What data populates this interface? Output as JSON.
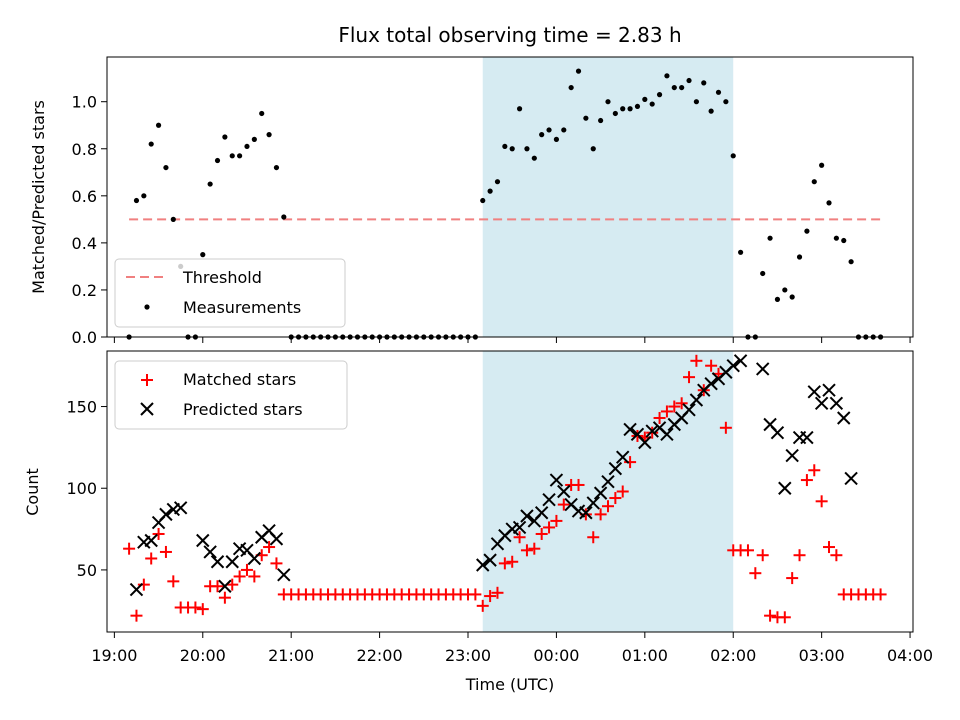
{
  "chart_data": [
    {
      "type": "scatter",
      "title": "Flux total observing time = 2.83 h",
      "xlabel": "",
      "ylabel": "Matched/Predicted stars",
      "ylim": [
        0,
        1.19
      ],
      "yticks": [
        0.0,
        0.2,
        0.4,
        0.6,
        0.8,
        1.0
      ],
      "ytick_labels": [
        "0.0",
        "0.2",
        "0.4",
        "0.6",
        "0.8",
        "1.0"
      ],
      "shaded_interval": [
        "23:10",
        "02:00"
      ],
      "threshold": {
        "name": "Threshold",
        "value": 0.5,
        "x_start": "19:10",
        "x_end": "03:40",
        "color": "#f08080"
      },
      "legend": {
        "position": "lower left",
        "entries": [
          "Threshold",
          "Measurements"
        ]
      },
      "series": [
        {
          "name": "Measurements",
          "color": "#000000",
          "marker": "dot",
          "x": [
            "19:10",
            "19:15",
            "19:20",
            "19:25",
            "19:30",
            "19:35",
            "19:40",
            "19:45",
            "19:50",
            "19:55",
            "20:00",
            "20:05",
            "20:10",
            "20:15",
            "20:20",
            "20:25",
            "20:30",
            "20:35",
            "20:40",
            "20:45",
            "20:50",
            "20:55",
            "21:00",
            "21:05",
            "21:10",
            "21:15",
            "21:20",
            "21:25",
            "21:30",
            "21:35",
            "21:40",
            "21:45",
            "21:50",
            "21:55",
            "22:00",
            "22:05",
            "22:10",
            "22:15",
            "22:20",
            "22:25",
            "22:30",
            "22:35",
            "22:40",
            "22:45",
            "22:50",
            "22:55",
            "23:00",
            "23:05",
            "23:10",
            "23:15",
            "23:20",
            "23:25",
            "23:30",
            "23:35",
            "23:40",
            "23:45",
            "23:50",
            "23:55",
            "00:00",
            "00:05",
            "00:10",
            "00:15",
            "00:20",
            "00:25",
            "00:30",
            "00:35",
            "00:40",
            "00:45",
            "00:50",
            "00:55",
            "01:00",
            "01:05",
            "01:10",
            "01:15",
            "01:20",
            "01:25",
            "01:30",
            "01:35",
            "01:40",
            "01:45",
            "01:50",
            "01:55",
            "02:00",
            "02:05",
            "02:10",
            "02:15",
            "02:20",
            "02:25",
            "02:30",
            "02:35",
            "02:40",
            "02:45",
            "02:50",
            "02:55",
            "03:00",
            "03:05",
            "03:10",
            "03:15",
            "03:20",
            "03:25",
            "03:30",
            "03:35",
            "03:40"
          ],
          "y": [
            0.0,
            0.58,
            0.6,
            0.82,
            0.9,
            0.72,
            0.5,
            0.3,
            0.0,
            0.0,
            0.35,
            0.65,
            0.75,
            0.85,
            0.77,
            0.77,
            0.81,
            0.84,
            0.95,
            0.86,
            0.72,
            0.51,
            0.0,
            0.0,
            0.0,
            0.0,
            0.0,
            0.0,
            0.0,
            0.0,
            0.0,
            0.0,
            0.0,
            0.0,
            0.0,
            0.0,
            0.0,
            0.0,
            0.0,
            0.0,
            0.0,
            0.0,
            0.0,
            0.0,
            0.0,
            0.0,
            0.0,
            0.0,
            0.58,
            0.62,
            0.66,
            0.81,
            0.8,
            0.97,
            0.8,
            0.76,
            0.86,
            0.88,
            0.84,
            0.88,
            1.06,
            1.13,
            0.93,
            0.8,
            0.92,
            1.0,
            0.95,
            0.97,
            0.97,
            0.98,
            1.01,
            0.99,
            1.03,
            1.11,
            1.06,
            1.06,
            1.09,
            1.0,
            1.08,
            0.96,
            1.04,
            1.0,
            0.77,
            0.36,
            0.0,
            0.0,
            0.27,
            0.42,
            0.16,
            0.2,
            0.17,
            0.34,
            0.45,
            0.66,
            0.73,
            0.57,
            0.42,
            0.41,
            0.32,
            0.0,
            0.0,
            0.0,
            0.0
          ]
        }
      ]
    },
    {
      "type": "scatter",
      "title": "",
      "xlabel": "Time (UTC)",
      "ylabel": "Count",
      "ylim": [
        12,
        184
      ],
      "xlim": [
        "18:55",
        "04:02"
      ],
      "xticks": [
        "19:00",
        "20:00",
        "21:00",
        "22:00",
        "23:00",
        "00:00",
        "01:00",
        "02:00",
        "03:00",
        "04:00"
      ],
      "yticks": [
        50,
        100,
        150
      ],
      "ytick_labels": [
        "50",
        "100",
        "150"
      ],
      "shaded_interval": [
        "23:10",
        "02:00"
      ],
      "legend": {
        "position": "upper left",
        "entries": [
          "Matched stars",
          "Predicted stars"
        ]
      },
      "series": [
        {
          "name": "Matched stars",
          "color": "#ff0000",
          "marker": "plus",
          "x": [
            "19:10",
            "19:15",
            "19:20",
            "19:25",
            "19:30",
            "19:35",
            "19:40",
            "19:45",
            "19:50",
            "19:55",
            "20:00",
            "20:05",
            "20:10",
            "20:15",
            "20:20",
            "20:25",
            "20:30",
            "20:35",
            "20:40",
            "20:45",
            "20:50",
            "20:55",
            "21:00",
            "21:05",
            "21:10",
            "21:15",
            "21:20",
            "21:25",
            "21:30",
            "21:35",
            "21:40",
            "21:45",
            "21:50",
            "21:55",
            "22:00",
            "22:05",
            "22:10",
            "22:15",
            "22:20",
            "22:25",
            "22:30",
            "22:35",
            "22:40",
            "22:45",
            "22:50",
            "22:55",
            "23:00",
            "23:05",
            "23:10",
            "23:15",
            "23:20",
            "23:25",
            "23:30",
            "23:35",
            "23:40",
            "23:45",
            "23:50",
            "23:55",
            "00:00",
            "00:05",
            "00:10",
            "00:15",
            "00:20",
            "00:25",
            "00:30",
            "00:35",
            "00:40",
            "00:45",
            "00:50",
            "00:55",
            "01:00",
            "01:05",
            "01:10",
            "01:15",
            "01:20",
            "01:25",
            "01:30",
            "01:35",
            "01:40",
            "01:45",
            "01:50",
            "01:55",
            "02:00",
            "02:05",
            "02:10",
            "02:15",
            "02:20",
            "02:25",
            "02:30",
            "02:35",
            "02:40",
            "02:45",
            "02:50",
            "02:55",
            "03:00",
            "03:05",
            "03:10",
            "03:15",
            "03:20",
            "03:25",
            "03:30",
            "03:35",
            "03:40"
          ],
          "y": [
            63,
            22,
            41,
            57,
            72,
            61,
            43,
            27,
            27,
            27,
            26,
            40,
            40,
            33,
            41,
            46,
            50,
            46,
            59,
            64,
            54,
            35,
            35,
            35,
            35,
            35,
            35,
            35,
            35,
            35,
            35,
            35,
            35,
            35,
            35,
            35,
            35,
            35,
            35,
            35,
            35,
            35,
            35,
            35,
            35,
            35,
            35,
            35,
            28,
            34,
            36,
            54,
            55,
            70,
            62,
            63,
            72,
            76,
            80,
            90,
            102,
            102,
            84,
            70,
            84,
            89,
            94,
            98,
            116,
            132,
            131,
            134,
            143,
            147,
            150,
            152,
            168,
            178,
            160,
            175,
            170,
            137,
            62,
            62,
            62,
            48,
            59,
            22,
            21,
            21,
            45,
            59,
            105,
            111,
            92,
            64,
            59,
            35,
            35,
            35,
            35,
            35,
            35
          ]
        },
        {
          "name": "Predicted stars",
          "color": "#000000",
          "marker": "x",
          "x": [
            "19:15",
            "19:20",
            "19:25",
            "19:30",
            "19:35",
            "19:40",
            "19:45",
            "20:00",
            "20:05",
            "20:10",
            "20:15",
            "20:20",
            "20:25",
            "20:30",
            "20:35",
            "20:40",
            "20:45",
            "20:50",
            "20:55",
            "23:10",
            "23:15",
            "23:20",
            "23:25",
            "23:30",
            "23:35",
            "23:40",
            "23:45",
            "23:50",
            "23:55",
            "00:00",
            "00:05",
            "00:10",
            "00:15",
            "00:20",
            "00:25",
            "00:30",
            "00:35",
            "00:40",
            "00:45",
            "00:50",
            "00:55",
            "01:00",
            "01:05",
            "01:10",
            "01:15",
            "01:20",
            "01:25",
            "01:30",
            "01:35",
            "01:40",
            "01:45",
            "01:50",
            "01:55",
            "02:00",
            "02:05",
            "02:20",
            "02:25",
            "02:30",
            "02:35",
            "02:40",
            "02:45",
            "02:50",
            "02:55",
            "03:00",
            "03:05",
            "03:10",
            "03:15",
            "03:20"
          ],
          "y": [
            38,
            67,
            68,
            79,
            84,
            87,
            88,
            68,
            61,
            55,
            40,
            55,
            63,
            62,
            57,
            70,
            74,
            69,
            47,
            53,
            56,
            66,
            71,
            75,
            76,
            83,
            80,
            85,
            93,
            105,
            98,
            90,
            86,
            85,
            91,
            97,
            104,
            112,
            119,
            136,
            133,
            128,
            135,
            137,
            133,
            139,
            143,
            148,
            154,
            160,
            164,
            167,
            171,
            175,
            178,
            173,
            139,
            134,
            100,
            120,
            131,
            131,
            159,
            152,
            160,
            152,
            143,
            106
          ]
        }
      ]
    }
  ]
}
